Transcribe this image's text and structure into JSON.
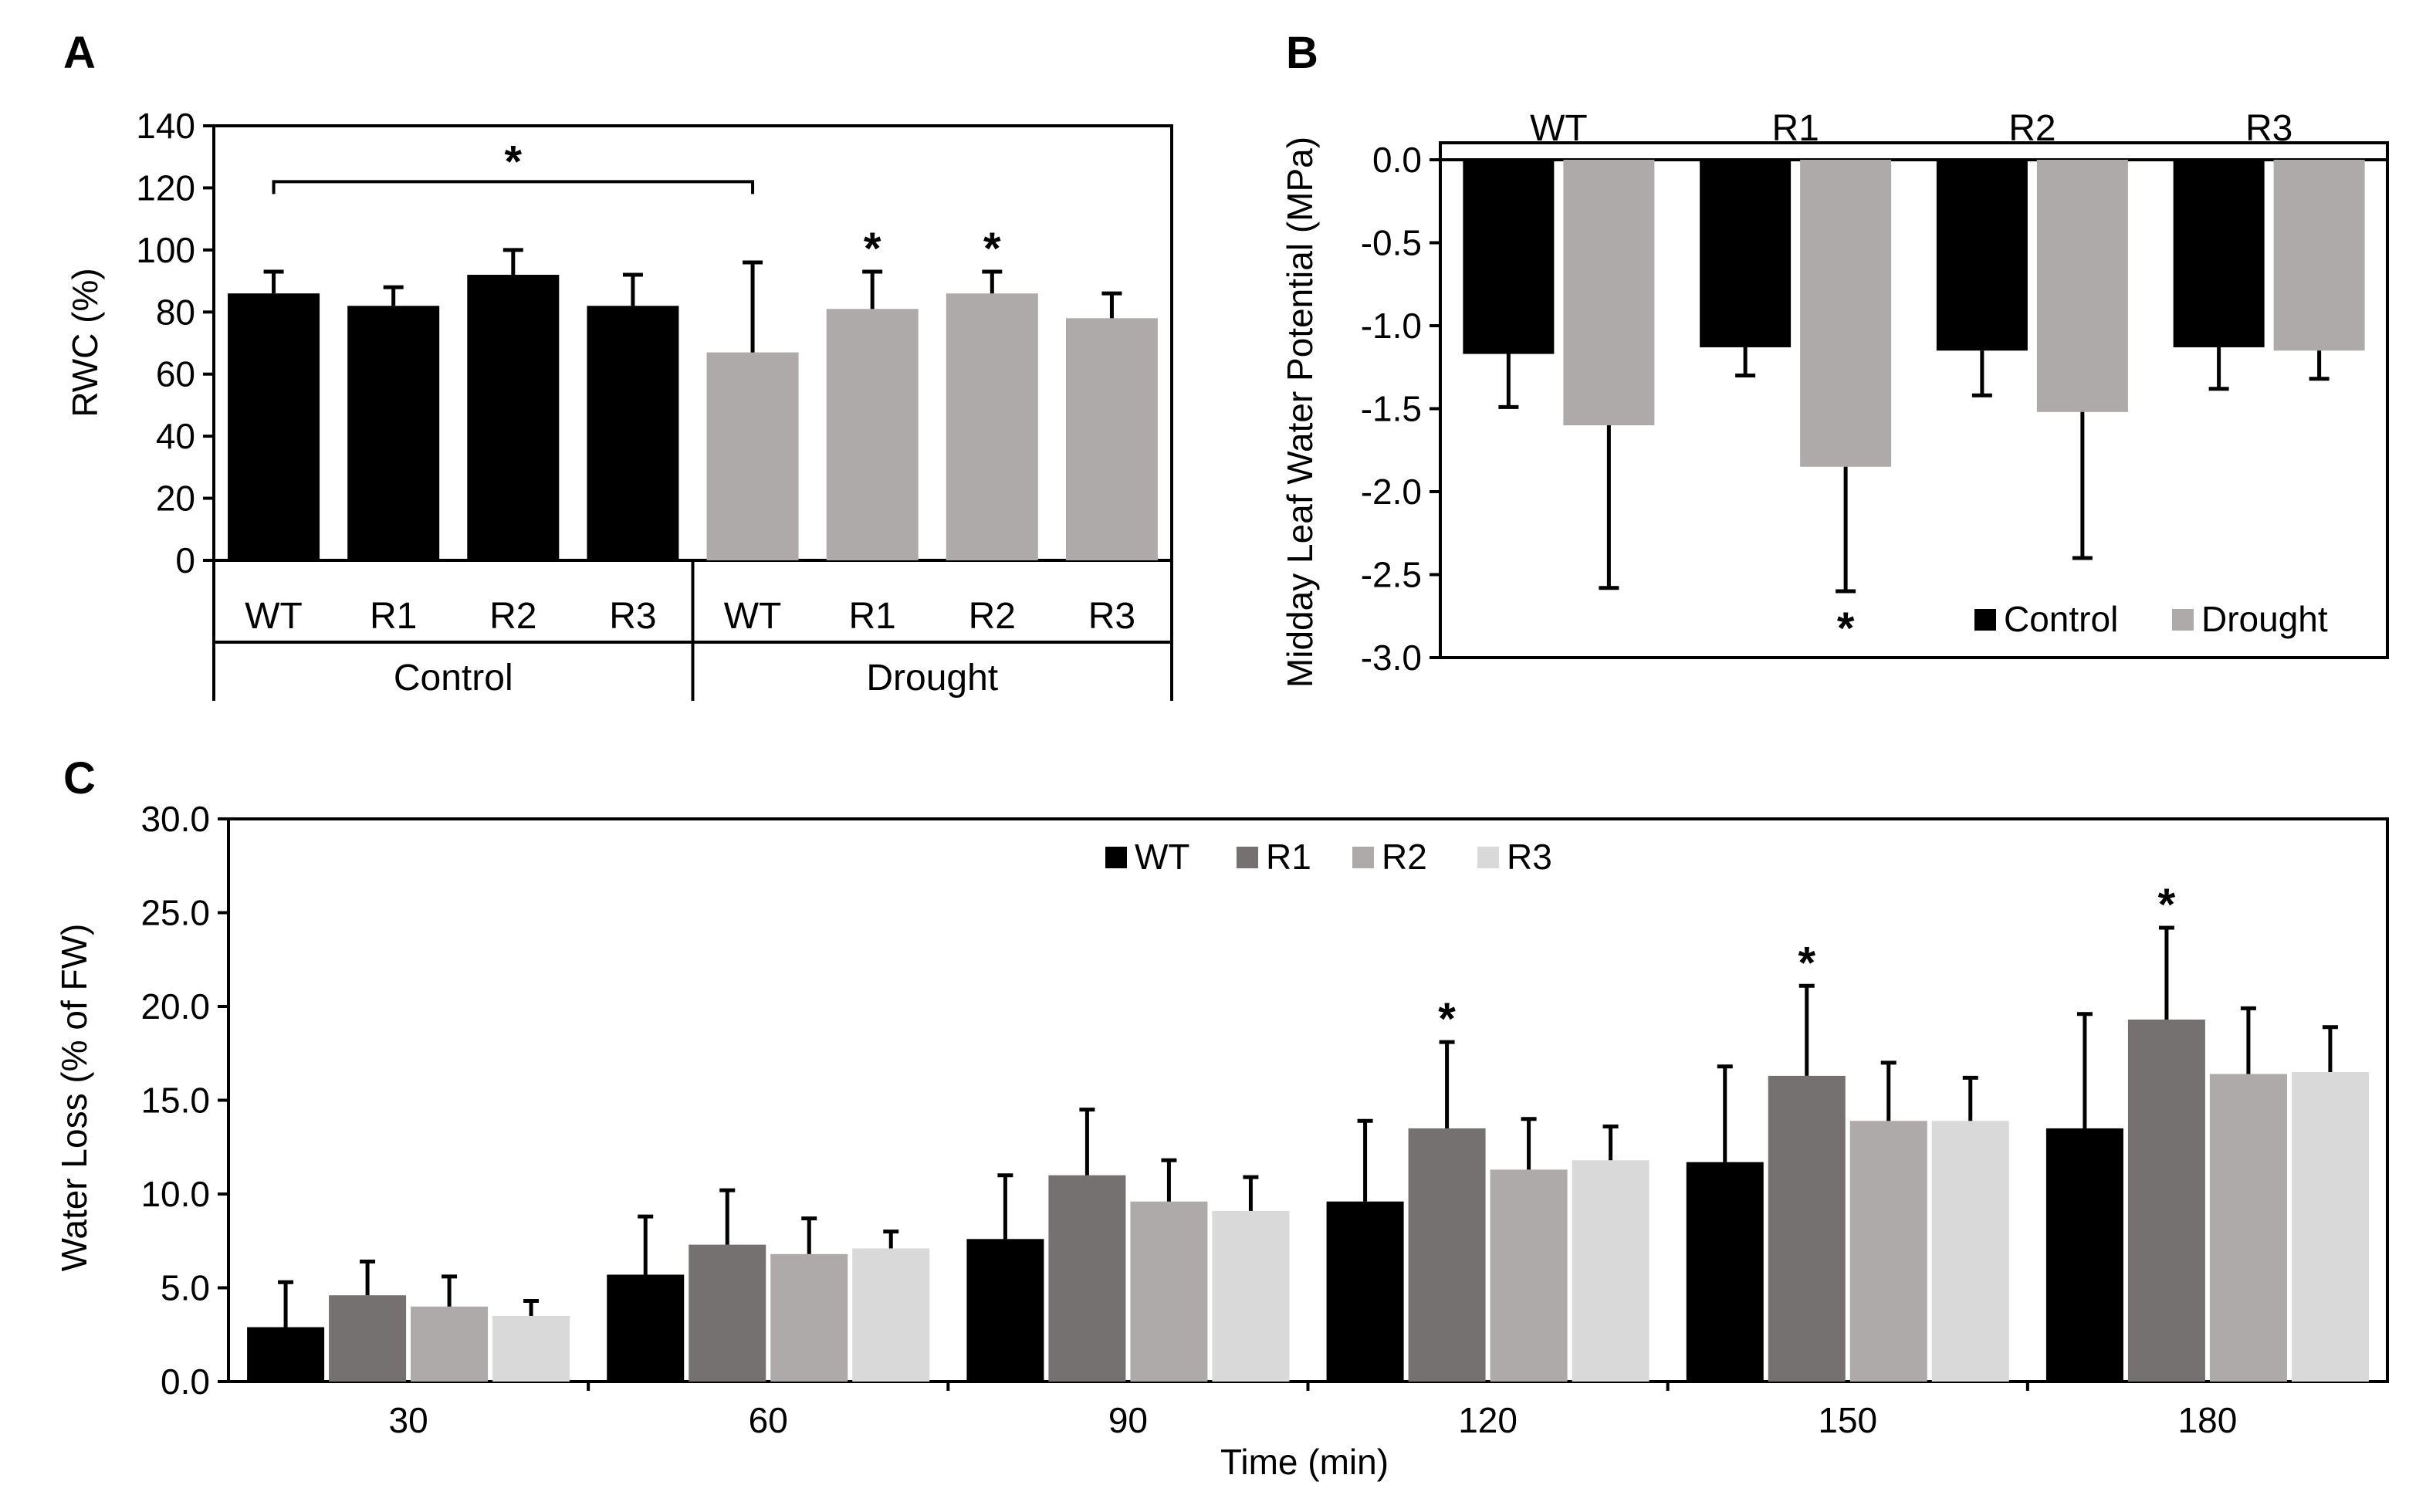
{
  "figure": {
    "panels": [
      "A",
      "B",
      "C"
    ]
  },
  "chart_data": [
    {
      "panel": "A",
      "type": "bar",
      "ylabel": "RWC (%)",
      "ylim": [
        0,
        140
      ],
      "yticks": [
        "0",
        "20",
        "40",
        "60",
        "80",
        "100",
        "120",
        "140"
      ],
      "groups": [
        {
          "name": "Control",
          "color": "#000000",
          "categories": [
            "WT",
            "R1",
            "R2",
            "R3"
          ],
          "values": [
            86,
            82,
            92,
            82
          ],
          "errors": [
            7,
            6,
            8,
            10
          ],
          "stars": [
            false,
            false,
            false,
            false
          ]
        },
        {
          "name": "Drought",
          "color": "#aeaaa9",
          "categories": [
            "WT",
            "R1",
            "R2",
            "R3"
          ],
          "values": [
            67,
            81,
            86,
            78
          ],
          "errors": [
            29,
            12,
            7,
            8
          ],
          "stars": [
            false,
            true,
            true,
            false
          ]
        }
      ],
      "bracket_label": "*"
    },
    {
      "panel": "B",
      "type": "bar",
      "ylabel": "Midday Leaf Water Potential (MPa)",
      "ylim": [
        -3.0,
        0.0
      ],
      "yticks": [
        "0.0",
        "-0.5",
        "-1.0",
        "-1.5",
        "-2.0",
        "-2.5",
        "-3.0"
      ],
      "categories": [
        "WT",
        "R1",
        "R2",
        "R3"
      ],
      "series": [
        {
          "name": "Control",
          "color": "#000000",
          "values": [
            -1.17,
            -1.13,
            -1.15,
            -1.13
          ],
          "errors": [
            0.32,
            0.17,
            0.27,
            0.25
          ],
          "stars": [
            false,
            false,
            false,
            false
          ]
        },
        {
          "name": "Drought",
          "color": "#aeaaa9",
          "values": [
            -1.6,
            -1.85,
            -1.52,
            -1.15
          ],
          "errors": [
            0.98,
            0.75,
            0.88,
            0.17
          ],
          "stars": [
            false,
            true,
            false,
            false
          ]
        }
      ],
      "legend": [
        "Control",
        "Drought"
      ]
    },
    {
      "panel": "C",
      "type": "bar",
      "xlabel": "Time (min)",
      "ylabel": "Water Loss (% of FW)",
      "ylim": [
        0,
        30
      ],
      "yticks": [
        "0.0",
        "5.0",
        "10.0",
        "15.0",
        "20.0",
        "25.0",
        "30.0"
      ],
      "categories": [
        "30",
        "60",
        "90",
        "120",
        "150",
        "180"
      ],
      "series": [
        {
          "name": "WT",
          "color": "#000000",
          "values": [
            2.9,
            5.7,
            7.6,
            9.6,
            11.7,
            13.5
          ],
          "errors": [
            2.4,
            3.1,
            3.4,
            4.3,
            5.1,
            6.1
          ],
          "stars": [
            false,
            false,
            false,
            false,
            false,
            false
          ]
        },
        {
          "name": "R1",
          "color": "#767171",
          "values": [
            4.6,
            7.3,
            11.0,
            13.5,
            16.3,
            19.3
          ],
          "errors": [
            1.8,
            2.9,
            3.5,
            4.6,
            4.8,
            4.9
          ],
          "stars": [
            false,
            false,
            false,
            true,
            true,
            true
          ]
        },
        {
          "name": "R2",
          "color": "#aeaaa9",
          "values": [
            4.0,
            6.8,
            9.6,
            11.3,
            13.9,
            16.4
          ],
          "errors": [
            1.6,
            1.9,
            2.2,
            2.7,
            3.1,
            3.5
          ],
          "stars": [
            false,
            false,
            false,
            false,
            false,
            false
          ]
        },
        {
          "name": "R3",
          "color": "#d9d9d9",
          "values": [
            3.5,
            7.1,
            9.1,
            11.8,
            13.9,
            16.5
          ],
          "errors": [
            0.8,
            0.9,
            1.8,
            1.8,
            2.3,
            2.4
          ],
          "stars": [
            false,
            false,
            false,
            false,
            false,
            false
          ]
        }
      ],
      "legend": [
        "WT",
        "R1",
        "R2",
        "R3"
      ]
    }
  ]
}
